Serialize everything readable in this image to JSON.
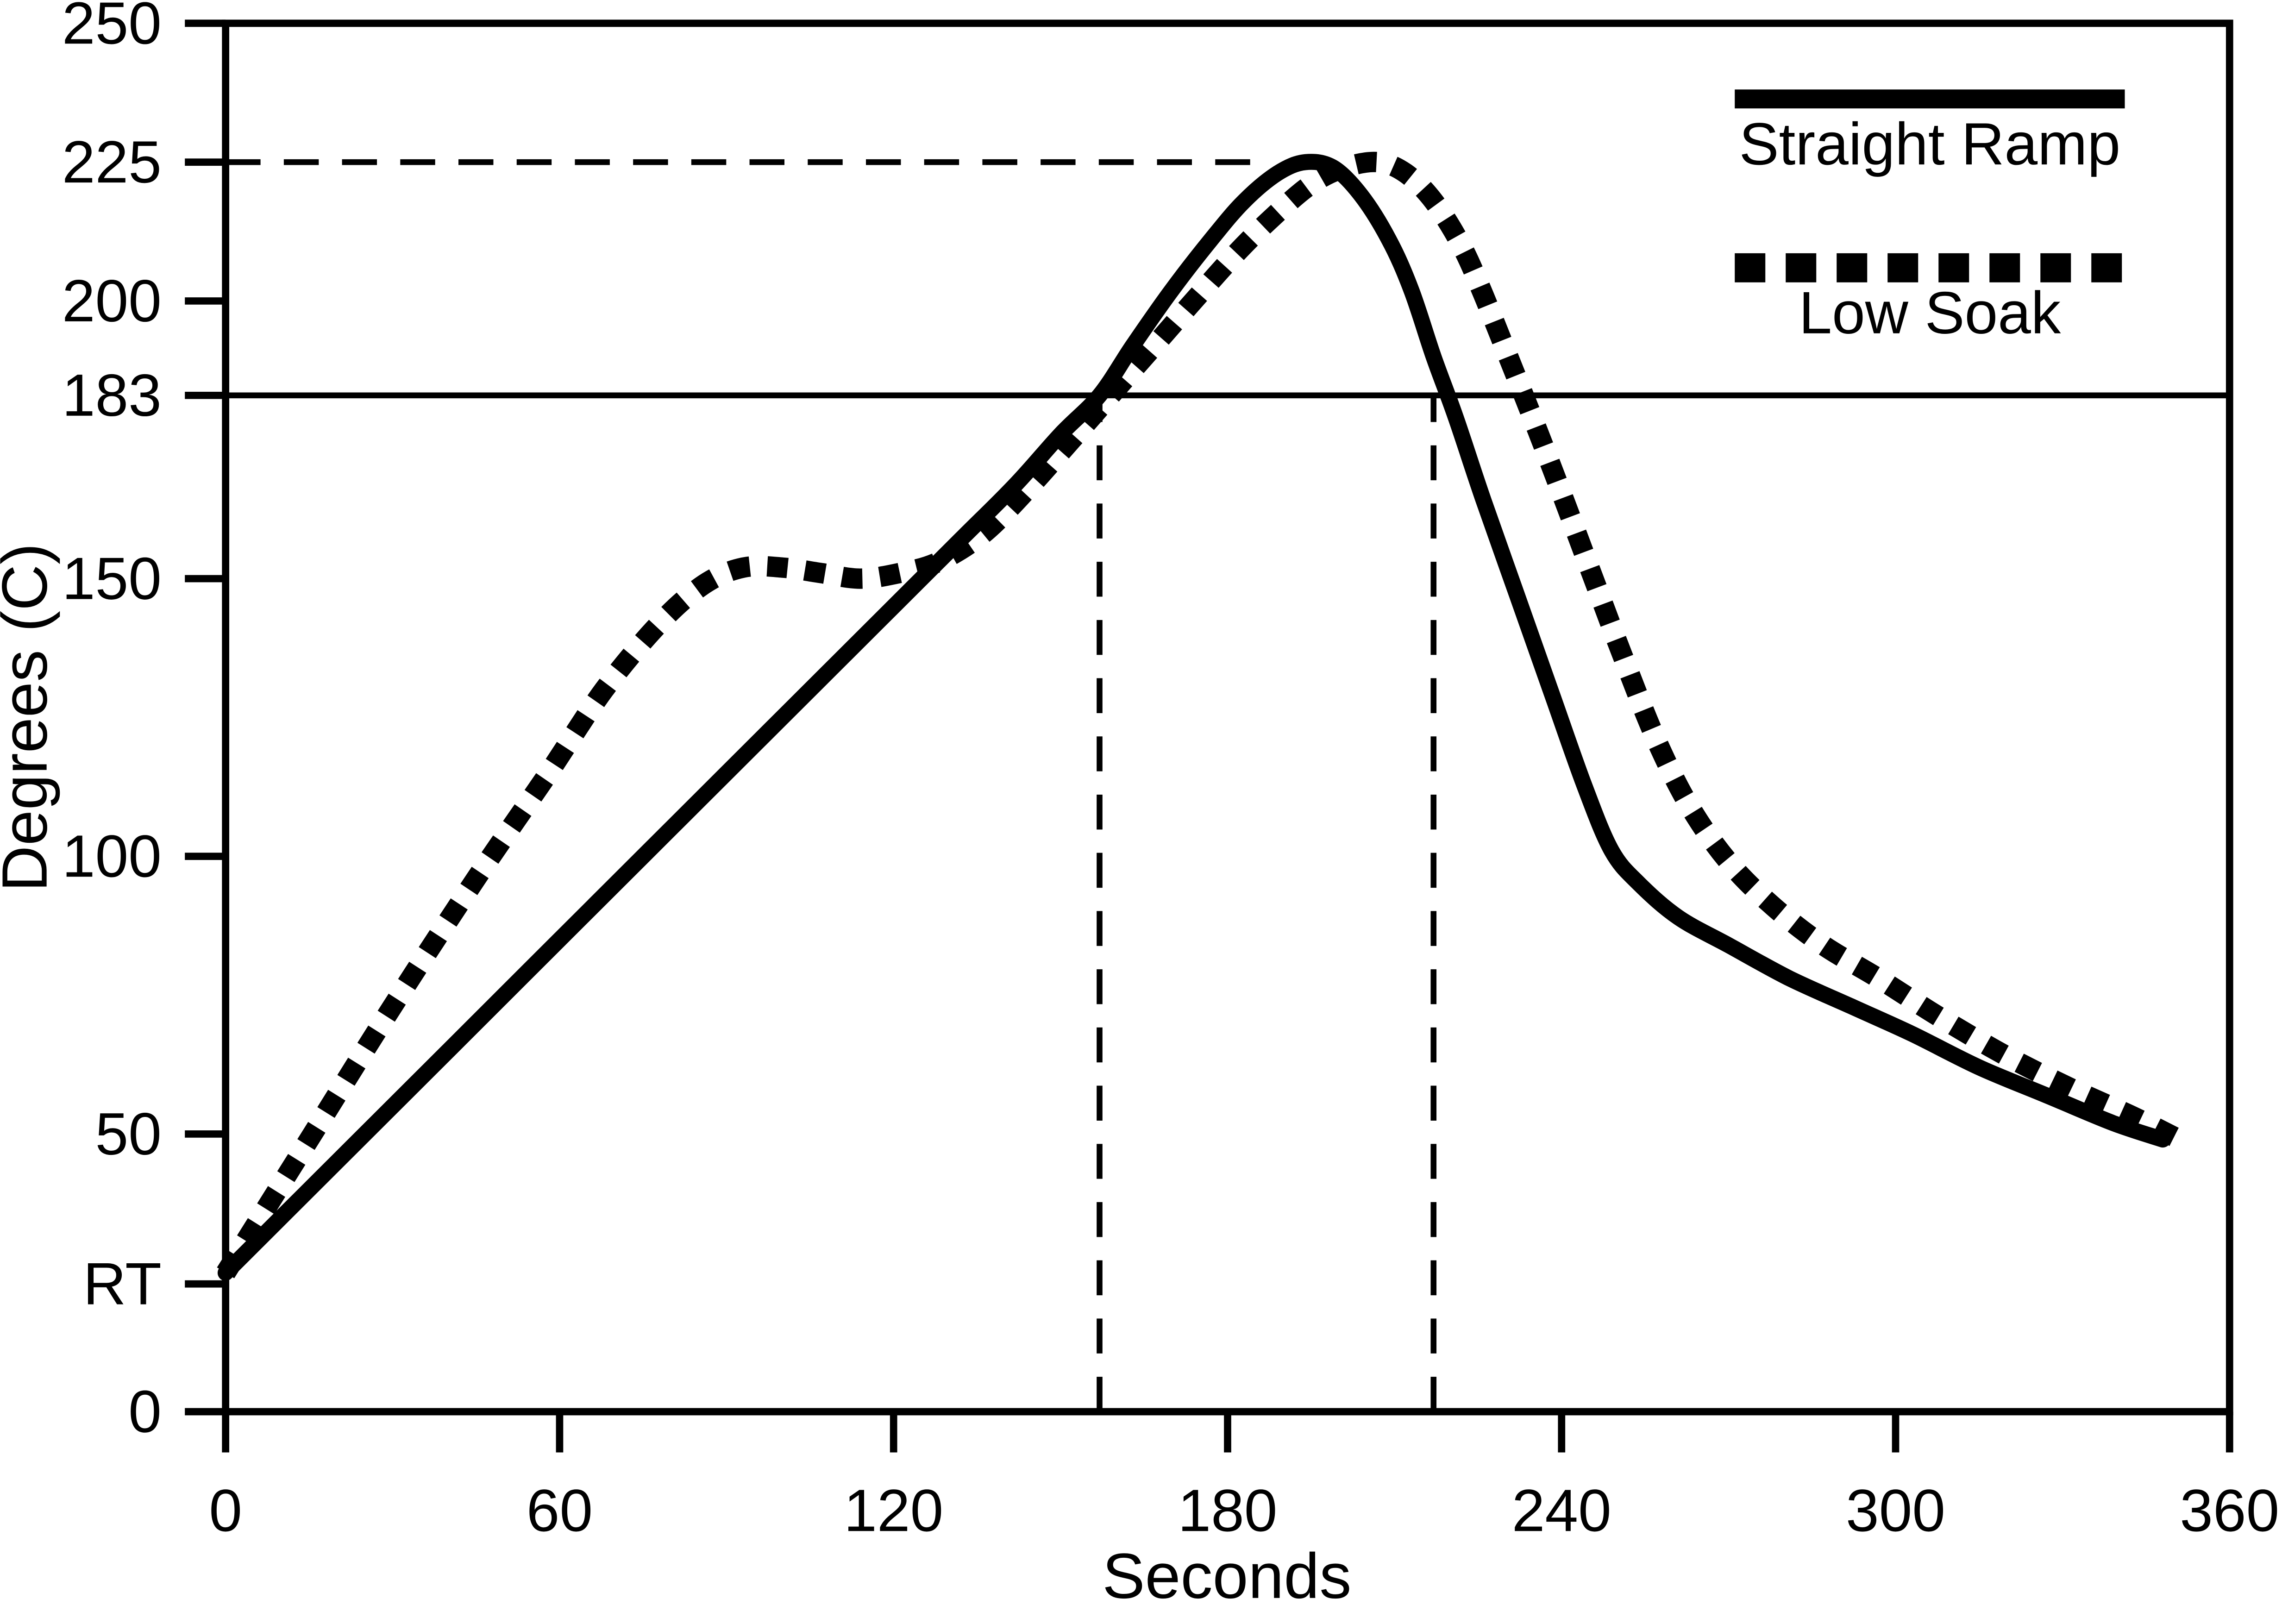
{
  "chart_data": {
    "type": "line",
    "title": "",
    "xlabel": "Seconds",
    "ylabel": "Degrees (C)",
    "xlim": [
      0,
      360
    ],
    "ylim": [
      0,
      250
    ],
    "grid": false,
    "background_color": "#ffffff",
    "line_color": "#000000",
    "x_ticks": [
      {
        "value": 0,
        "label": "0"
      },
      {
        "value": 60,
        "label": "60"
      },
      {
        "value": 120,
        "label": "120"
      },
      {
        "value": 180,
        "label": "180"
      },
      {
        "value": 240,
        "label": "240"
      },
      {
        "value": 300,
        "label": "300"
      },
      {
        "value": 360,
        "label": "360"
      }
    ],
    "y_ticks": [
      {
        "value": 250,
        "label": "250"
      },
      {
        "value": 225,
        "label": "225"
      },
      {
        "value": 200,
        "label": "200"
      },
      {
        "value": 183,
        "label": "183"
      },
      {
        "value": 150,
        "label": "150"
      },
      {
        "value": 100,
        "label": "100"
      },
      {
        "value": 50,
        "label": "50"
      },
      {
        "value": 23,
        "label": "RT"
      },
      {
        "value": 0,
        "label": "0"
      }
    ],
    "series": [
      {
        "name": "Straight Ramp",
        "style": "solid",
        "points": [
          [
            0,
            25
          ],
          [
            20,
            45
          ],
          [
            40,
            65
          ],
          [
            60,
            85
          ],
          [
            80,
            105
          ],
          [
            100,
            125
          ],
          [
            120,
            145
          ],
          [
            132,
            157
          ],
          [
            142,
            167
          ],
          [
            150,
            176
          ],
          [
            157,
            183
          ],
          [
            163,
            192
          ],
          [
            170,
            202
          ],
          [
            177,
            211
          ],
          [
            183,
            218
          ],
          [
            189,
            223
          ],
          [
            194,
            225
          ],
          [
            199,
            224
          ],
          [
            204,
            219
          ],
          [
            209,
            211
          ],
          [
            213,
            202
          ],
          [
            217,
            190
          ],
          [
            221,
            179
          ],
          [
            226,
            164
          ],
          [
            232,
            147
          ],
          [
            238,
            130
          ],
          [
            244,
            113
          ],
          [
            249,
            101
          ],
          [
            254,
            95
          ],
          [
            261,
            89
          ],
          [
            270,
            84
          ],
          [
            281,
            78
          ],
          [
            292,
            73
          ],
          [
            303,
            68
          ],
          [
            315,
            62
          ],
          [
            327,
            57
          ],
          [
            339,
            52
          ],
          [
            348,
            49
          ]
        ]
      },
      {
        "name": "Low Soak",
        "style": "dotted",
        "points": [
          [
            0,
            25
          ],
          [
            15,
            49
          ],
          [
            30,
            73
          ],
          [
            45,
            96
          ],
          [
            58,
            115
          ],
          [
            68,
            130
          ],
          [
            78,
            142
          ],
          [
            86,
            149
          ],
          [
            93,
            152
          ],
          [
            100,
            152
          ],
          [
            107,
            151
          ],
          [
            114,
            150
          ],
          [
            121,
            151
          ],
          [
            128,
            153
          ],
          [
            136,
            158
          ],
          [
            144,
            166
          ],
          [
            152,
            175
          ],
          [
            159,
            183
          ],
          [
            166,
            191
          ],
          [
            173,
            199
          ],
          [
            181,
            208
          ],
          [
            188,
            215
          ],
          [
            195,
            221
          ],
          [
            201,
            224
          ],
          [
            207,
            225
          ],
          [
            212,
            223
          ],
          [
            217,
            218
          ],
          [
            222,
            210
          ],
          [
            226,
            201
          ],
          [
            230,
            191
          ],
          [
            234,
            181
          ],
          [
            239,
            168
          ],
          [
            245,
            152
          ],
          [
            251,
            136
          ],
          [
            257,
            121
          ],
          [
            263,
            109
          ],
          [
            270,
            99
          ],
          [
            278,
            91
          ],
          [
            287,
            84
          ],
          [
            297,
            78
          ],
          [
            308,
            71
          ],
          [
            320,
            64
          ],
          [
            332,
            58
          ],
          [
            343,
            53
          ],
          [
            351,
            49
          ]
        ]
      }
    ],
    "reference_lines": [
      {
        "id": "liquidus-line",
        "orientation": "horizontal",
        "y": 183,
        "x_start": 0,
        "x_end": 360,
        "style": "solid"
      },
      {
        "id": "peak-temp-line",
        "orientation": "horizontal",
        "y": 225,
        "x_start": 0,
        "x_end": 185,
        "style": "dashed"
      },
      {
        "id": "time-above-liquidus-start",
        "orientation": "vertical",
        "x": 157,
        "y_start": 0,
        "y_end": 183,
        "style": "dashed"
      },
      {
        "id": "time-above-liquidus-end",
        "orientation": "vertical",
        "x": 217,
        "y_start": 0,
        "y_end": 183,
        "style": "dashed"
      }
    ],
    "legend": {
      "position": "top-right",
      "entries": [
        {
          "label": "Straight Ramp",
          "style": "solid"
        },
        {
          "label": "Low Soak",
          "style": "dotted"
        }
      ]
    }
  }
}
